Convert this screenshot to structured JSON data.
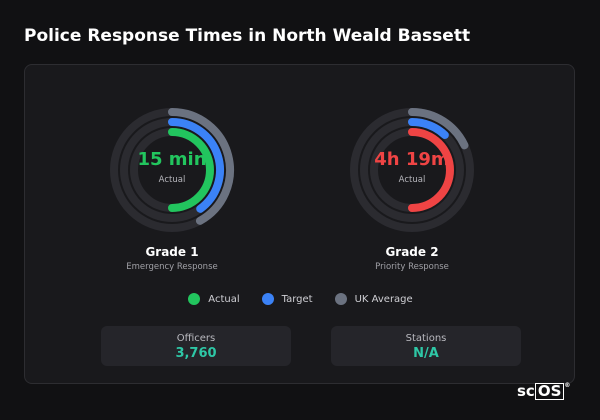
{
  "title": "Police Response Times in North Weald Bassett",
  "colors": {
    "actual": "#22c55e",
    "target": "#3b82f6",
    "uk_average": "#6b7280",
    "ring_track": "#2b2b30",
    "grade2_actual": "#ef4444",
    "stat_value": "#2ec7a6"
  },
  "gauges": [
    {
      "value": "15 min",
      "caption": "Actual",
      "grade": "Grade 1",
      "subtitle": "Emergency Response",
      "value_color": "#22c55e",
      "fill": {
        "uk_average": 0.42,
        "target": 0.4,
        "actual": 0.5
      },
      "actual_color": "#22c55e"
    },
    {
      "value": "4h 19m",
      "caption": "Actual",
      "grade": "Grade 2",
      "subtitle": "Priority Response",
      "value_color": "#ef4444",
      "fill": {
        "uk_average": 0.18,
        "target": 0.12,
        "actual": 0.5
      },
      "actual_color": "#ef4444"
    }
  ],
  "legend": [
    {
      "label": "Actual",
      "color": "#22c55e"
    },
    {
      "label": "Target",
      "color": "#3b82f6"
    },
    {
      "label": "UK Average",
      "color": "#6b7280"
    }
  ],
  "stats": [
    {
      "label": "Officers",
      "value": "3,760"
    },
    {
      "label": "Stations",
      "value": "N/A"
    }
  ],
  "brand": {
    "text": "sc",
    "boxed": "OS",
    "reg": "®"
  }
}
